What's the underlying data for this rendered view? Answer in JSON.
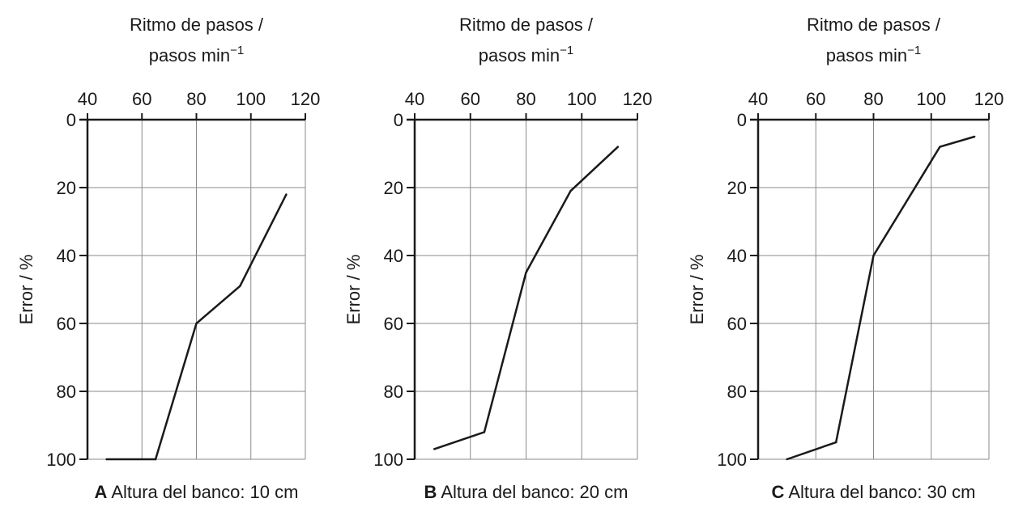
{
  "chart_data": [
    {
      "type": "line",
      "letter": "A",
      "caption": "Altura del banco: 10 cm",
      "xlabel_line1": "Ritmo de pasos /",
      "xlabel_line2": "pasos min",
      "xlabel_exp": "−1",
      "ylabel": "Error / %",
      "xlim": [
        40,
        120
      ],
      "ylim": [
        0,
        100
      ],
      "y_inverted": true,
      "x_axis_position": "top",
      "grid": true,
      "xticks": [
        "40",
        "60",
        "80",
        "100",
        "120"
      ],
      "yticks": [
        "0",
        "20",
        "40",
        "60",
        "80",
        "100"
      ],
      "x": [
        47,
        65,
        80,
        96,
        113
      ],
      "y": [
        100,
        100,
        60,
        49,
        22
      ]
    },
    {
      "type": "line",
      "letter": "B",
      "caption": "Altura del banco: 20 cm",
      "xlabel_line1": "Ritmo de pasos /",
      "xlabel_line2": "pasos min",
      "xlabel_exp": "−1",
      "ylabel": "Error / %",
      "xlim": [
        40,
        120
      ],
      "ylim": [
        0,
        100
      ],
      "y_inverted": true,
      "x_axis_position": "top",
      "grid": true,
      "xticks": [
        "40",
        "60",
        "80",
        "100",
        "120"
      ],
      "yticks": [
        "0",
        "20",
        "40",
        "60",
        "80",
        "100"
      ],
      "x": [
        47,
        65,
        80,
        96,
        113
      ],
      "y": [
        97,
        92,
        45,
        21,
        8
      ]
    },
    {
      "type": "line",
      "letter": "C",
      "caption": "Altura del banco: 30 cm",
      "xlabel_line1": "Ritmo de pasos /",
      "xlabel_line2": "pasos min",
      "xlabel_exp": "−1",
      "ylabel": "Error / %",
      "xlim": [
        40,
        120
      ],
      "ylim": [
        0,
        100
      ],
      "y_inverted": true,
      "x_axis_position": "top",
      "grid": true,
      "xticks": [
        "40",
        "60",
        "80",
        "100",
        "120"
      ],
      "yticks": [
        "0",
        "20",
        "40",
        "60",
        "80",
        "100"
      ],
      "x": [
        50,
        67,
        80,
        103,
        115
      ],
      "y": [
        100,
        95,
        40,
        8,
        5
      ]
    }
  ],
  "colors": {
    "line": "#1a1a1a",
    "axis": "#1a1a1a",
    "grid": "#8a8a8a"
  }
}
